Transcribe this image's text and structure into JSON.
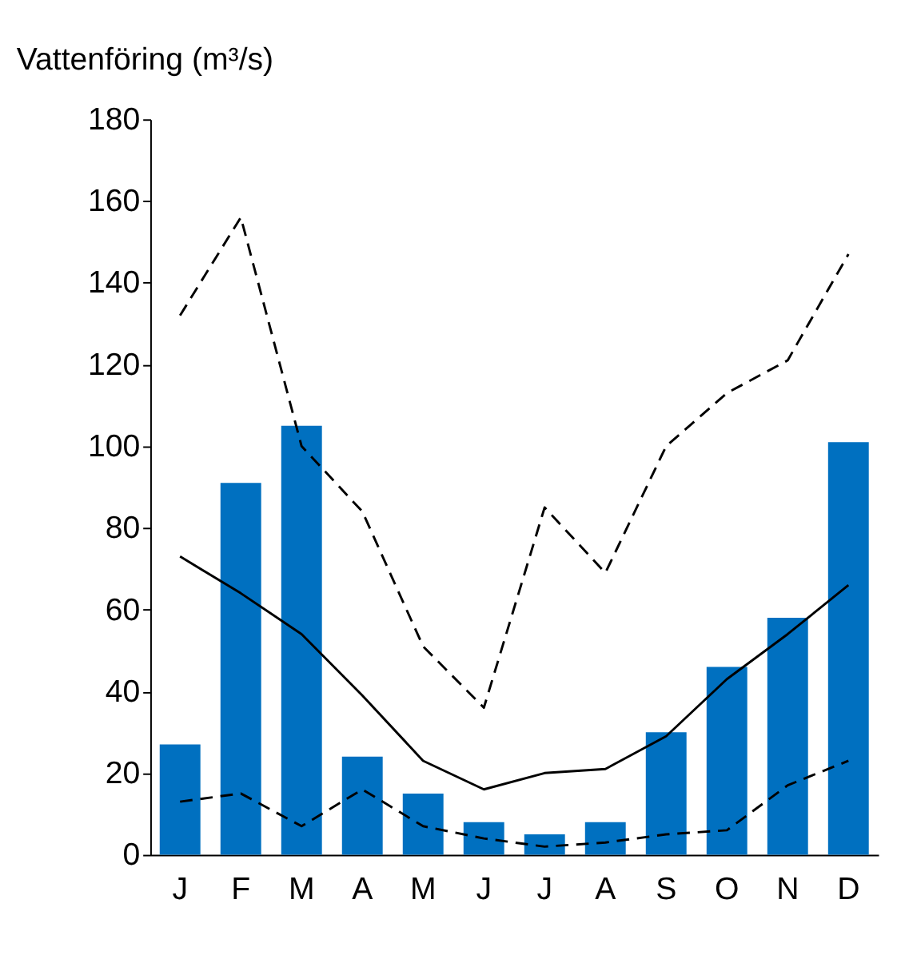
{
  "chart_data": {
    "type": "bar",
    "title": "Vattenföring  (m³/s)",
    "categories": [
      "J",
      "F",
      "M",
      "A",
      "M",
      "J",
      "J",
      "A",
      "S",
      "O",
      "N",
      "D"
    ],
    "series": [
      {
        "color": "#0070c0",
        "values": [
          27,
          91,
          105,
          24,
          15,
          8,
          5,
          8,
          30,
          46,
          58,
          101
        ]
      },
      {
        "type": "line",
        "color": "#000000",
        "line_style": "solid",
        "values": [
          73,
          64,
          54,
          39,
          23,
          16,
          20,
          21,
          29,
          43,
          54,
          66
        ]
      },
      {
        "type": "line",
        "color": "#000000",
        "line_style": "dashed",
        "values": [
          132,
          156,
          100,
          84,
          51,
          36,
          85,
          69,
          100,
          113,
          121,
          147
        ]
      },
      {
        "type": "line",
        "color": "#000000",
        "line_style": "dashed",
        "values": [
          13,
          15,
          7,
          16,
          7,
          4,
          2,
          3,
          5,
          6,
          17,
          23
        ]
      }
    ],
    "ylim": [
      0,
      180
    ],
    "yticks": [
      0,
      20,
      40,
      60,
      80,
      100,
      120,
      140,
      160,
      180
    ],
    "grid": false
  }
}
